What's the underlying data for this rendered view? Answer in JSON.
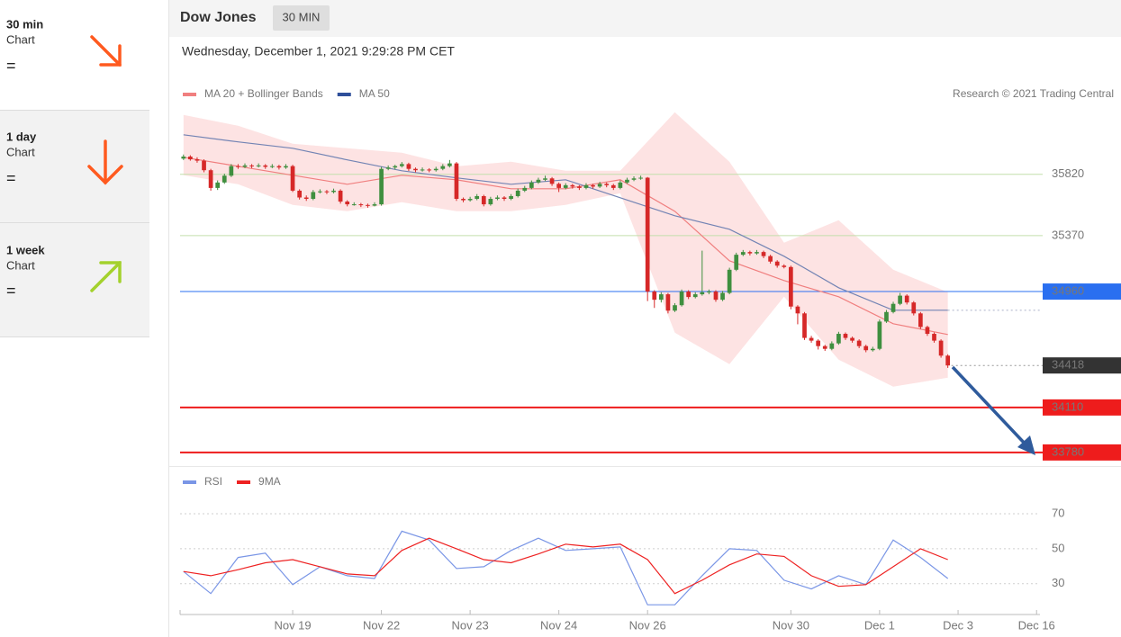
{
  "sidebar": [
    {
      "period": "30 min",
      "label": "Chart",
      "signal": "="
    },
    {
      "period": "1 day",
      "label": "Chart",
      "signal": "="
    },
    {
      "period": "1 week",
      "label": "Chart",
      "signal": "="
    }
  ],
  "header": {
    "title": "Dow Jones",
    "interval": "30 MIN",
    "timestamp": "Wednesday, December 1, 2021 9:29:28 PM CET",
    "credit": "Research © 2021 Trading Central"
  },
  "chart_data": [
    {
      "type": "candlestick",
      "up_color": "#3f8f3f",
      "down_color": "#d62828",
      "x": [
        0,
        1,
        2,
        3,
        4,
        5,
        6,
        7,
        8,
        9,
        10,
        11,
        12,
        13,
        14,
        15,
        16,
        17,
        18,
        19,
        20,
        21,
        22,
        23,
        24,
        25,
        26,
        27,
        28,
        29,
        30,
        31,
        32,
        33,
        34,
        35,
        36,
        37,
        38,
        39,
        40,
        41,
        42,
        43,
        44,
        45,
        46,
        47,
        48,
        49,
        50,
        51,
        52,
        53,
        54,
        55,
        56,
        57,
        58,
        59,
        60,
        61,
        62,
        63,
        64,
        65,
        66,
        67,
        68,
        69,
        70,
        71,
        72,
        73,
        74,
        75,
        76,
        77,
        78,
        79,
        80,
        81,
        82,
        83,
        84,
        85,
        86,
        87,
        88,
        89,
        90,
        91,
        92,
        93,
        94,
        95,
        96,
        97,
        98,
        99,
        100,
        101,
        102,
        103,
        104,
        105,
        106,
        107,
        108,
        109,
        110,
        111,
        112
      ],
      "candles": [
        [
          35935,
          35965,
          35925,
          35950
        ],
        [
          35950,
          35960,
          35920,
          35930
        ],
        [
          35930,
          35945,
          35905,
          35920
        ],
        [
          35920,
          35930,
          35835,
          35850
        ],
        [
          35850,
          35860,
          35700,
          35720
        ],
        [
          35720,
          35775,
          35705,
          35760
        ],
        [
          35760,
          35825,
          35750,
          35810
        ],
        [
          35810,
          35895,
          35800,
          35880
        ],
        [
          35880,
          35895,
          35860,
          35875
        ],
        [
          35875,
          35900,
          35865,
          35885
        ],
        [
          35885,
          35895,
          35865,
          35880
        ],
        [
          35880,
          35900,
          35870,
          35885
        ],
        [
          35885,
          35895,
          35860,
          35875
        ],
        [
          35875,
          35895,
          35865,
          35880
        ],
        [
          35880,
          35890,
          35855,
          35870
        ],
        [
          35870,
          35895,
          35860,
          35880
        ],
        [
          35880,
          35890,
          35690,
          35700
        ],
        [
          35700,
          35710,
          35635,
          35650
        ],
        [
          35650,
          35665,
          35625,
          35640
        ],
        [
          35640,
          35705,
          35630,
          35690
        ],
        [
          35690,
          35710,
          35680,
          35695
        ],
        [
          35695,
          35705,
          35675,
          35690
        ],
        [
          35690,
          35715,
          35680,
          35700
        ],
        [
          35700,
          35710,
          35605,
          35620
        ],
        [
          35620,
          35630,
          35585,
          35600
        ],
        [
          35600,
          35615,
          35590,
          35600
        ],
        [
          35600,
          35610,
          35580,
          35595
        ],
        [
          35595,
          35605,
          35575,
          35590
        ],
        [
          35590,
          35615,
          35585,
          35600
        ],
        [
          35600,
          35875,
          35590,
          35860
        ],
        [
          35860,
          35885,
          35850,
          35870
        ],
        [
          35870,
          35890,
          35855,
          35880
        ],
        [
          35880,
          35910,
          35870,
          35895
        ],
        [
          35895,
          35905,
          35845,
          35860
        ],
        [
          35860,
          35870,
          35835,
          35850
        ],
        [
          35850,
          35870,
          35840,
          35855
        ],
        [
          35855,
          35865,
          35835,
          35850
        ],
        [
          35850,
          35875,
          35840,
          35860
        ],
        [
          35860,
          35895,
          35850,
          35880
        ],
        [
          35880,
          35925,
          35870,
          35900
        ],
        [
          35900,
          35910,
          35625,
          35640
        ],
        [
          35640,
          35650,
          35615,
          35630
        ],
        [
          35630,
          35655,
          35620,
          35640
        ],
        [
          35640,
          35675,
          35630,
          35660
        ],
        [
          35660,
          35670,
          35585,
          35600
        ],
        [
          35600,
          35655,
          35590,
          35640
        ],
        [
          35640,
          35665,
          35630,
          35650
        ],
        [
          35650,
          35660,
          35625,
          35640
        ],
        [
          35640,
          35675,
          35630,
          35660
        ],
        [
          35660,
          35715,
          35650,
          35700
        ],
        [
          35700,
          35735,
          35690,
          35720
        ],
        [
          35720,
          35775,
          35710,
          35760
        ],
        [
          35760,
          35795,
          35750,
          35780
        ],
        [
          35780,
          35810,
          35770,
          35790
        ],
        [
          35790,
          35800,
          35735,
          35750
        ],
        [
          35750,
          35760,
          35690,
          35720
        ],
        [
          35720,
          35755,
          35710,
          35740
        ],
        [
          35740,
          35750,
          35715,
          35730
        ],
        [
          35730,
          35740,
          35705,
          35720
        ],
        [
          35720,
          35755,
          35710,
          35740
        ],
        [
          35740,
          35750,
          35715,
          35730
        ],
        [
          35730,
          35765,
          35720,
          35750
        ],
        [
          35750,
          35760,
          35725,
          35740
        ],
        [
          35740,
          35750,
          35705,
          35720
        ],
        [
          35720,
          35775,
          35710,
          35760
        ],
        [
          35760,
          35795,
          35750,
          35780
        ],
        [
          35780,
          35805,
          35770,
          35790
        ],
        [
          35790,
          35810,
          35780,
          35795
        ],
        [
          35795,
          35800,
          34890,
          34960
        ],
        [
          34960,
          34970,
          34840,
          34900
        ],
        [
          34900,
          34955,
          34880,
          34940
        ],
        [
          34940,
          34950,
          34800,
          34820
        ],
        [
          34820,
          34875,
          34810,
          34860
        ],
        [
          34860,
          34975,
          34850,
          34960
        ],
        [
          34960,
          34970,
          34905,
          34920
        ],
        [
          34920,
          34955,
          34910,
          34940
        ],
        [
          34940,
          35260,
          34930,
          34955
        ],
        [
          34955,
          34975,
          34940,
          34960
        ],
        [
          34960,
          34970,
          34885,
          34900
        ],
        [
          34900,
          34965,
          34890,
          34950
        ],
        [
          34950,
          35135,
          34940,
          35120
        ],
        [
          35120,
          35245,
          35110,
          35230
        ],
        [
          35230,
          35265,
          35220,
          35250
        ],
        [
          35250,
          35260,
          35225,
          35240
        ],
        [
          35240,
          35265,
          35230,
          35250
        ],
        [
          35250,
          35260,
          35205,
          35220
        ],
        [
          35220,
          35230,
          35165,
          35180
        ],
        [
          35180,
          35190,
          35135,
          35150
        ],
        [
          35150,
          35160,
          35130,
          35140
        ],
        [
          35140,
          35150,
          34830,
          34850
        ],
        [
          34850,
          34860,
          34720,
          34800
        ],
        [
          34800,
          34810,
          34605,
          34620
        ],
        [
          34620,
          34635,
          34585,
          34600
        ],
        [
          34600,
          34610,
          34535,
          34560
        ],
        [
          34560,
          34570,
          34525,
          34540
        ],
        [
          34540,
          34595,
          34530,
          34580
        ],
        [
          34580,
          34665,
          34570,
          34650
        ],
        [
          34650,
          34660,
          34605,
          34620
        ],
        [
          34620,
          34630,
          34585,
          34600
        ],
        [
          34600,
          34610,
          34545,
          34560
        ],
        [
          34560,
          34570,
          34515,
          34530
        ],
        [
          34530,
          34555,
          34520,
          34540
        ],
        [
          34540,
          34755,
          34530,
          34740
        ],
        [
          34740,
          34825,
          34730,
          34810
        ],
        [
          34810,
          34885,
          34800,
          34870
        ],
        [
          34870,
          34950,
          34860,
          34930
        ],
        [
          34930,
          34940,
          34865,
          34880
        ],
        [
          34880,
          34890,
          34785,
          34800
        ],
        [
          34800,
          34810,
          34685,
          34700
        ],
        [
          34700,
          34710,
          34635,
          34650
        ],
        [
          34650,
          34660,
          34585,
          34600
        ],
        [
          34600,
          34610,
          34475,
          34490
        ],
        [
          34490,
          34500,
          34400,
          34418
        ]
      ],
      "series": [
        {
          "name": "MA 20 + Bollinger Bands",
          "color": "#f07f7f",
          "band_color": "#fde3e3",
          "x": [
            0,
            8,
            16,
            24,
            32,
            40,
            48,
            56,
            64,
            72,
            80,
            88,
            96,
            104,
            112
          ],
          "values": [
            35945,
            35879,
            35813,
            35747,
            35813,
            35780,
            35714,
            35714,
            35780,
            35549,
            35186,
            35041,
            34922,
            34724,
            34645
          ],
          "band_upper": [
            36256,
            36176,
            36044,
            36011,
            35978,
            35879,
            35912,
            35846,
            35846,
            36275,
            35912,
            35318,
            35483,
            35120,
            34955
          ],
          "band_lower": [
            35813,
            35747,
            35596,
            35549,
            35615,
            35549,
            35549,
            35596,
            35681,
            34658,
            34427,
            34922,
            34460,
            34262,
            34328
          ]
        },
        {
          "name": "MA 50",
          "color": "#7384b4",
          "legend_color": "#2f4f9a",
          "x": [
            0,
            8,
            16,
            24,
            32,
            40,
            48,
            56,
            64,
            72,
            80,
            88,
            96,
            104,
            112
          ],
          "values": [
            36110,
            36058,
            36011,
            35926,
            35846,
            35794,
            35747,
            35780,
            35648,
            35516,
            35417,
            35219,
            34988,
            34823,
            34823
          ]
        }
      ],
      "ylim": [
        33700,
        36300
      ],
      "xlim": [
        -0.5,
        125.5
      ],
      "yticks": [
        35820,
        35370,
        34960,
        34418,
        34110,
        33780
      ],
      "ytick_colors": [
        "#6cb82c",
        "#6cb82c",
        "#2a6ff0",
        "#333333",
        "#ee1c1c",
        "#ee1c1c"
      ],
      "ytick_line_colors": [
        "#c3dfac",
        "#c3dfac",
        "#2a6ff0",
        "#999999",
        "#ee1c1c",
        "#ee1c1c"
      ],
      "ytick_boxes": [
        false,
        false,
        true,
        true,
        true,
        true
      ],
      "ytick_line_styles": [
        "solid",
        "solid",
        "solid",
        "dotted",
        "bold",
        "bold"
      ]
    },
    {
      "type": "line",
      "x": [
        0,
        4,
        8,
        12,
        16,
        20,
        24,
        28,
        32,
        36,
        40,
        44,
        48,
        52,
        56,
        60,
        64,
        68,
        72,
        76,
        80,
        84,
        88,
        92,
        96,
        100,
        104,
        108,
        112
      ],
      "series": [
        {
          "name": "RSI",
          "color": "#7a96e6",
          "values": [
            37,
            24.4,
            45,
            47.5,
            29.5,
            39.7,
            34.6,
            33,
            60,
            55,
            38.7,
            39.7,
            49,
            56,
            49,
            50,
            51,
            18,
            18,
            34.6,
            50,
            49,
            32,
            27,
            34.6,
            29.5,
            55,
            45,
            33
          ]
        },
        {
          "name": "9MA",
          "color": "#ee2222",
          "values": [
            37,
            34.6,
            38,
            42,
            43.8,
            39.7,
            35.6,
            34.6,
            49,
            56,
            50,
            43.8,
            42,
            47,
            52.6,
            51,
            52.6,
            43.8,
            24.4,
            32,
            40.8,
            47,
            45.6,
            34.6,
            28.5,
            29.5,
            39.7,
            50,
            43.8
          ]
        }
      ],
      "ylim": [
        15,
        80
      ],
      "yticks": [
        70,
        50,
        30
      ],
      "grid": true,
      "xlim": [
        -0.5,
        125.5
      ],
      "xticks": [
        {
          "value": 16,
          "label": "Nov 19"
        },
        {
          "value": 29,
          "label": "Nov 22"
        },
        {
          "value": 42,
          "label": "Nov 23"
        },
        {
          "value": 55,
          "label": "Nov 24"
        },
        {
          "value": 68,
          "label": "Nov 26"
        },
        {
          "value": 89,
          "label": "Nov 30"
        },
        {
          "value": 102,
          "label": "Dec 1"
        },
        {
          "value": 113.5,
          "label": "Dec 3"
        },
        {
          "value": 125,
          "label": "Dec 16"
        }
      ]
    }
  ]
}
